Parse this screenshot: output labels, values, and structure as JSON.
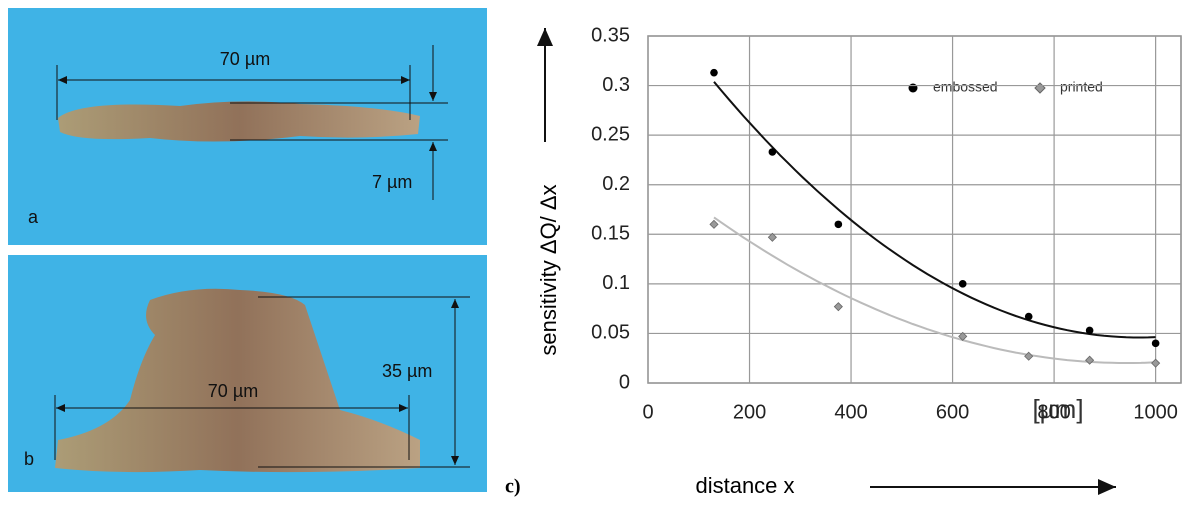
{
  "panels": [
    {
      "label": "a",
      "annotations": [
        "70 µm",
        "7 µm"
      ]
    },
    {
      "label": "b",
      "annotations": [
        "70 µm",
        "35 µm"
      ]
    }
  ],
  "chart_data": {
    "type": "scatter",
    "panel_label": "c)",
    "y_label": "sensitivity ΔQ/ Δx",
    "x_label": "distance x",
    "unit_label": "[µm]",
    "xlim": [
      0,
      1050
    ],
    "xticks": [
      0,
      200,
      400,
      600,
      800,
      1000
    ],
    "ylim": [
      0,
      0.35
    ],
    "yticks": [
      0,
      0.05,
      0.1,
      0.15,
      0.2,
      0.25,
      0.3,
      0.35
    ],
    "grid": true,
    "trendline": true,
    "series": [
      {
        "name": "embossed",
        "color": "#000000",
        "marker": "circle",
        "x": [
          130,
          245,
          375,
          620,
          750,
          870,
          1000
        ],
        "values": [
          0.313,
          0.233,
          0.16,
          0.1,
          0.067,
          0.053,
          0.04
        ]
      },
      {
        "name": "printed",
        "color": "#999999",
        "marker": "diamond",
        "x": [
          130,
          245,
          375,
          620,
          750,
          870,
          1000
        ],
        "values": [
          0.16,
          0.147,
          0.077,
          0.047,
          0.027,
          0.023,
          0.02
        ]
      }
    ]
  }
}
